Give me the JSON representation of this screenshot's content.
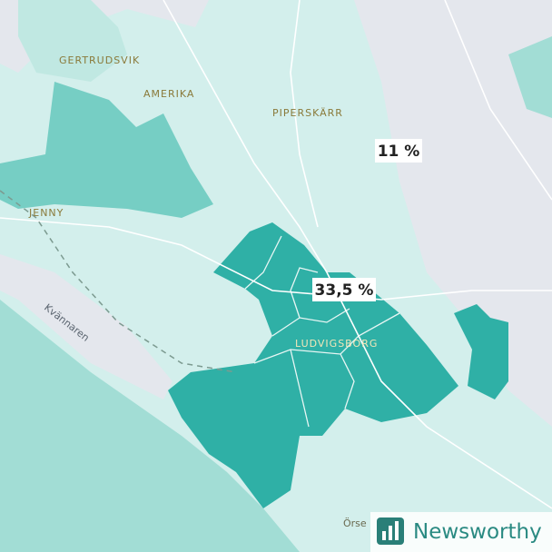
{
  "places": [
    "GERTRUDSVIK",
    "AMERIKA",
    "PIPERSKÄRR",
    "JENNY",
    "Kvännaren",
    "LUDVIGSBORG",
    "Örse"
  ],
  "value_labels": [
    "11 %",
    "33,5 %"
  ],
  "brand": {
    "name": "Newsworthy"
  }
}
